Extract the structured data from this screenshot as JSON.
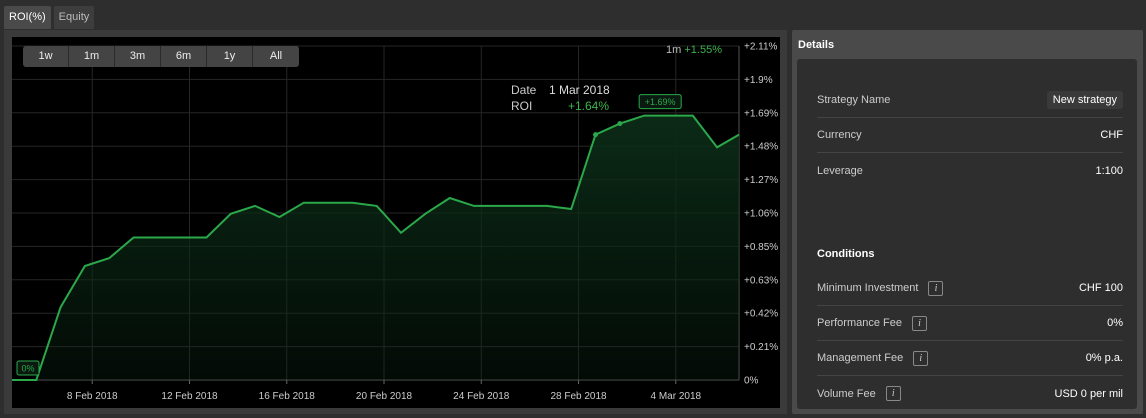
{
  "tabs": [
    {
      "label": "ROI(%)"
    },
    {
      "label": "Equity"
    }
  ],
  "ranges": [
    {
      "label": "1w"
    },
    {
      "label": "1m"
    },
    {
      "label": "3m"
    },
    {
      "label": "6m"
    },
    {
      "label": "1y"
    },
    {
      "label": "All"
    }
  ],
  "summary": {
    "period": "1m",
    "value": "+1.55%"
  },
  "tooltip": {
    "date_label": "Date",
    "date_value": "1 Mar 2018",
    "roi_label": "ROI",
    "roi_value": "+1.64%"
  },
  "chart_data": {
    "type": "area",
    "y_ticks": [
      "0%",
      "+0.21%",
      "+0.42%",
      "+0.63%",
      "+0.85%",
      "+1.06%",
      "+1.27%",
      "+1.48%",
      "+1.69%",
      "+1.9%",
      "+2.11%"
    ],
    "x_ticks": [
      "8 Feb 2018",
      "12 Feb 2018",
      "16 Feb 2018",
      "20 Feb 2018",
      "24 Feb 2018",
      "28 Feb 2018",
      "4 Mar 2018"
    ],
    "ylim": [
      0,
      2.11
    ],
    "xlim": [
      4.7,
      34.6
    ],
    "series": [
      {
        "x": [
          4.7,
          5.7,
          6.7,
          7.7,
          8.7,
          9.7,
          10.7,
          11.7,
          12.7,
          13.7,
          14.7,
          15.7,
          16.7,
          17.7,
          18.7,
          19.7,
          20.7,
          21.7,
          22.7,
          23.7,
          24.7,
          25.7,
          26.7,
          27.7,
          28.7,
          29.7,
          30.7,
          31.7,
          32.7,
          33.7,
          34.6
        ],
        "y": [
          0.0,
          0.0,
          0.46,
          0.72,
          0.77,
          0.9,
          0.9,
          0.9,
          0.9,
          1.05,
          1.1,
          1.03,
          1.12,
          1.12,
          1.12,
          1.1,
          0.93,
          1.05,
          1.15,
          1.1,
          1.1,
          1.1,
          1.1,
          1.08,
          1.55,
          1.62,
          1.67,
          1.67,
          1.67,
          1.47,
          1.55
        ]
      }
    ],
    "start_marker": "0%",
    "peak_marker": "+1.69%",
    "line_color": "#2aa84a",
    "fill_color": "#0b2a16"
  },
  "details": {
    "title": "Details",
    "rows": [
      {
        "label": "Strategy Name",
        "value": "New strategy"
      },
      {
        "label": "Currency",
        "value": "CHF"
      },
      {
        "label": "Leverage",
        "value": "1:100"
      }
    ],
    "conditions_title": "Conditions",
    "conditions": [
      {
        "label": "Minimum Investment",
        "value": "CHF 100",
        "info": "i"
      },
      {
        "label": "Performance Fee",
        "value": "0%",
        "info": "i"
      },
      {
        "label": "Management Fee",
        "value": "0% p.a.",
        "info": "i"
      },
      {
        "label": "Volume Fee",
        "value": "USD 0 per mil",
        "info": "i"
      }
    ]
  }
}
